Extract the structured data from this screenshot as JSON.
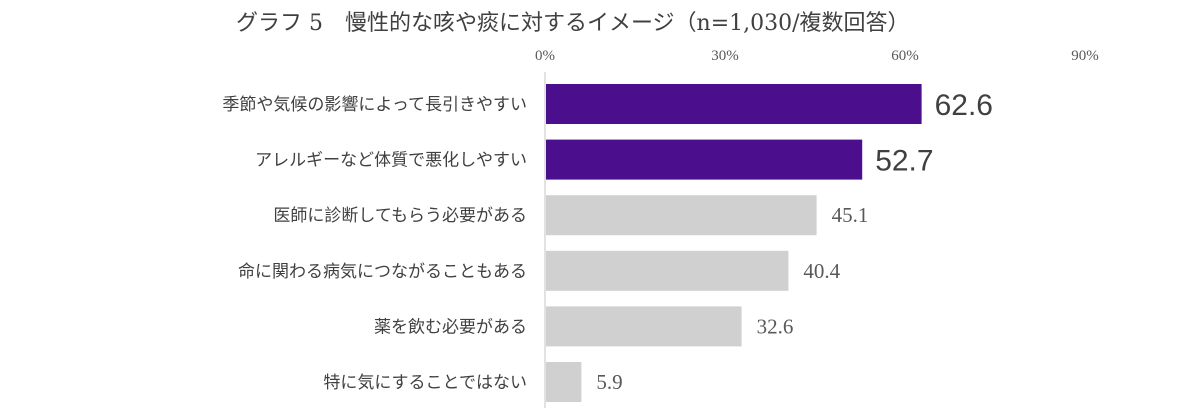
{
  "chart_data": {
    "type": "bar",
    "orientation": "horizontal",
    "title": "グラフ 5　慢性的な咳や痰に対するイメージ（n=1,030/複数回答）",
    "categories": [
      "季節や気候の影響によって長引きやすい",
      "アレルギーなど体質で悪化しやすい",
      "医師に診断してもらう必要がある",
      "命に関わる病気につながることもある",
      "薬を飲む必要がある",
      "特に気にすることではない"
    ],
    "values": [
      62.6,
      52.7,
      45.1,
      40.4,
      32.6,
      5.9
    ],
    "value_labels": [
      "62.6",
      "52.7",
      "45.1",
      "40.4",
      "32.6",
      "5.9"
    ],
    "highlighted": [
      true,
      true,
      false,
      false,
      false,
      false
    ],
    "xlim": [
      0,
      90
    ],
    "ticks": [
      0,
      30,
      60,
      90
    ],
    "tick_labels": [
      "0%",
      "30%",
      "60%",
      "90%"
    ],
    "tick_position": "top",
    "grid": false,
    "colors": {
      "highlight": "#4b0e8c",
      "normal": "#d0d0d0",
      "axis": "#d9d9d9"
    }
  }
}
